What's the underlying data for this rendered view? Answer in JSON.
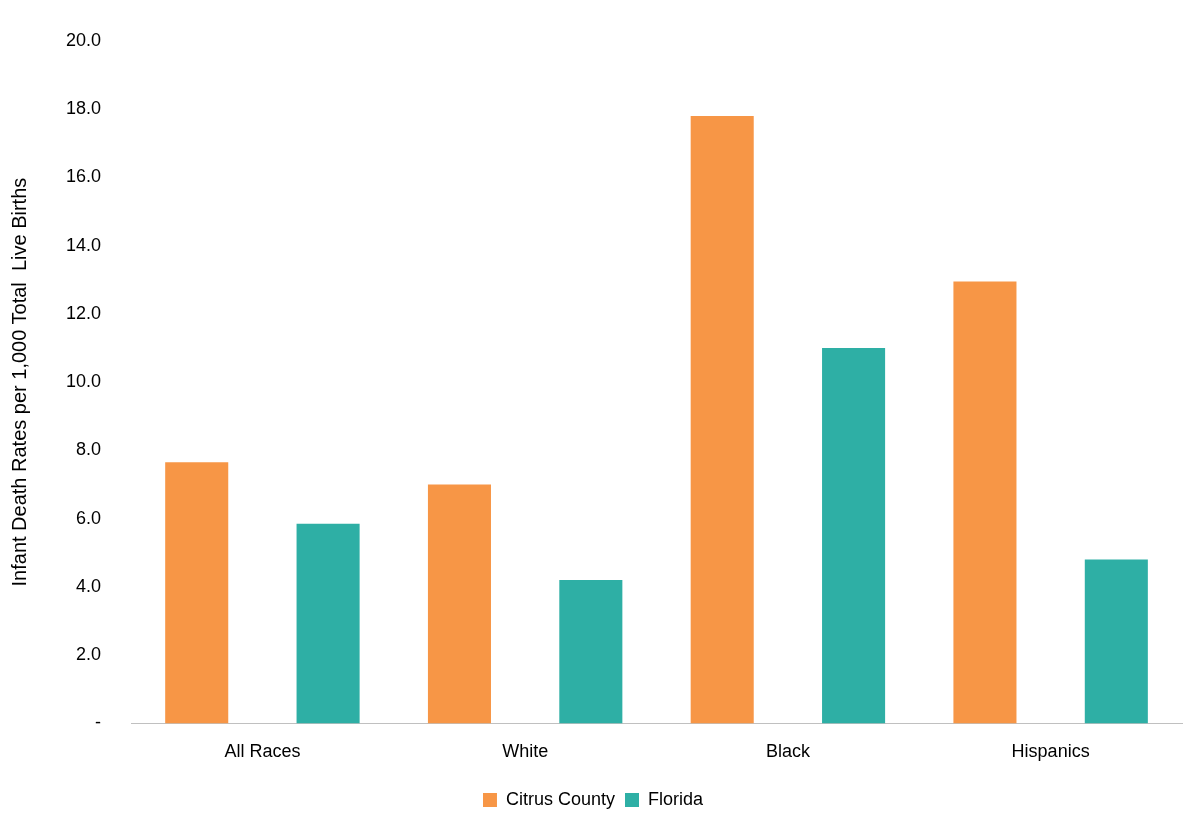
{
  "chart_data": {
    "type": "bar",
    "ylabel": "Infant Death Rates per 1,000 Total  Live Births",
    "categories": [
      "All Races",
      "White",
      "Black",
      "Hispanics"
    ],
    "series": [
      {
        "name": "Citrus County",
        "color": "#f79646",
        "values": [
          7.65,
          7.0,
          17.8,
          12.95
        ]
      },
      {
        "name": "Florida",
        "color": "#2eafa5",
        "values": [
          5.85,
          4.2,
          11.0,
          4.8
        ]
      }
    ],
    "ylim": [
      0,
      20
    ],
    "yticks": [
      {
        "value": 0,
        "label": "-"
      },
      {
        "value": 2,
        "label": "2.0"
      },
      {
        "value": 4,
        "label": "4.0"
      },
      {
        "value": 6,
        "label": "6.0"
      },
      {
        "value": 8,
        "label": "8.0"
      },
      {
        "value": 10,
        "label": "10.0"
      },
      {
        "value": 12,
        "label": "12.0"
      },
      {
        "value": 14,
        "label": "14.0"
      },
      {
        "value": 16,
        "label": "16.0"
      },
      {
        "value": 18,
        "label": "18.0"
      },
      {
        "value": 20,
        "label": "20.0"
      }
    ],
    "grid": false,
    "legend": "bottom"
  }
}
